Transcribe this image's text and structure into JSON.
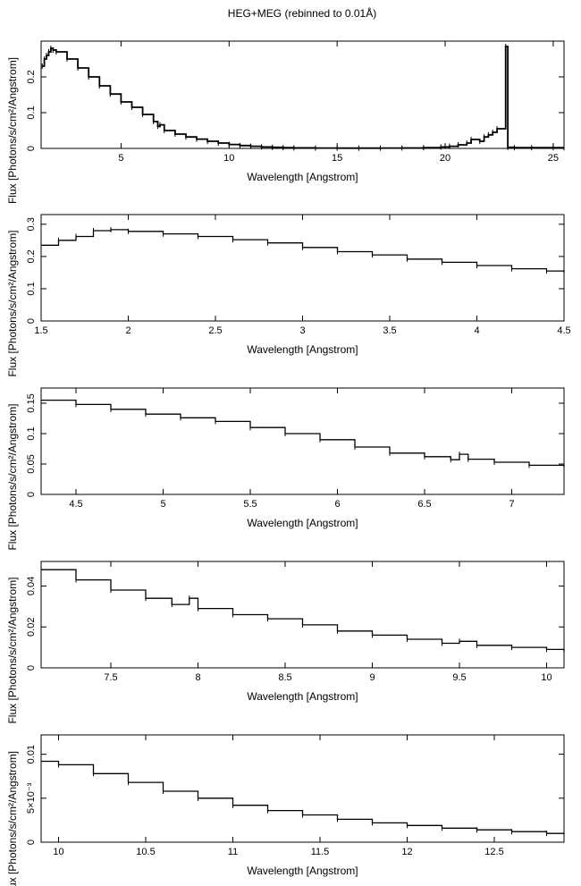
{
  "title": "HEG+MEG (rebinned to 0.01Å)",
  "chart_data": [
    {
      "type": "line",
      "xlabel": "Wavelength [Angstrom]",
      "ylabel": "Flux [Photons/s/cm²/Angstrom]",
      "xlim": [
        1.3,
        25.5
      ],
      "ylim": [
        0,
        0.3
      ],
      "xticks": [
        {
          "v": 5,
          "label": "5"
        },
        {
          "v": 10,
          "label": "10"
        },
        {
          "v": 15,
          "label": "15"
        },
        {
          "v": 20,
          "label": "20"
        },
        {
          "v": 25,
          "label": "25"
        }
      ],
      "yticks": [
        {
          "v": 0,
          "label": "0"
        },
        {
          "v": 0.1,
          "label": "0.1"
        },
        {
          "v": 0.2,
          "label": "0.2"
        }
      ],
      "x": [
        1.35,
        1.45,
        1.55,
        1.65,
        1.75,
        1.85,
        2.0,
        2.5,
        3.0,
        3.5,
        4.0,
        4.5,
        5.0,
        5.5,
        6.0,
        6.5,
        6.7,
        6.8,
        7.0,
        7.5,
        8.0,
        8.5,
        9.0,
        9.5,
        10.0,
        10.5,
        11.0,
        11.5,
        12.0,
        12.5,
        13.0,
        14.0,
        15.0,
        16.0,
        17.0,
        18.0,
        19.0,
        19.8,
        20.2,
        20.6,
        21.0,
        21.2,
        21.6,
        21.8,
        22.0,
        22.2,
        22.4,
        22.8,
        22.9,
        23.2,
        24.0,
        25.0,
        25.5
      ],
      "y": [
        0.23,
        0.25,
        0.26,
        0.27,
        0.28,
        0.275,
        0.27,
        0.25,
        0.225,
        0.2,
        0.175,
        0.152,
        0.13,
        0.115,
        0.095,
        0.075,
        0.062,
        0.066,
        0.05,
        0.04,
        0.032,
        0.026,
        0.02,
        0.015,
        0.011,
        0.008,
        0.006,
        0.004,
        0.003,
        0.002,
        0.0015,
        0.001,
        0.0008,
        0.0008,
        0.001,
        0.0012,
        0.002,
        0.004,
        0.006,
        0.01,
        0.015,
        0.025,
        0.02,
        0.032,
        0.038,
        0.045,
        0.055,
        0.285,
        0.003,
        0.002,
        0.002,
        0.002,
        0.002
      ]
    },
    {
      "type": "line",
      "xlabel": "Wavelength [Angstrom]",
      "ylabel": "Flux [Photons/s/cm²/Angstrom]",
      "xlim": [
        1.5,
        4.5
      ],
      "ylim": [
        0,
        0.33
      ],
      "xticks": [
        {
          "v": 1.5,
          "label": "1.5"
        },
        {
          "v": 2,
          "label": "2"
        },
        {
          "v": 2.5,
          "label": "2.5"
        },
        {
          "v": 3,
          "label": "3"
        },
        {
          "v": 3.5,
          "label": "3.5"
        },
        {
          "v": 4,
          "label": "4"
        },
        {
          "v": 4.5,
          "label": "4.5"
        }
      ],
      "yticks": [
        {
          "v": 0,
          "label": "0"
        },
        {
          "v": 0.1,
          "label": "0.1"
        },
        {
          "v": 0.2,
          "label": "0.2"
        },
        {
          "v": 0.3,
          "label": "0.3"
        }
      ],
      "x": [
        1.5,
        1.6,
        1.7,
        1.8,
        1.9,
        2.0,
        2.2,
        2.4,
        2.6,
        2.8,
        3.0,
        3.2,
        3.4,
        3.6,
        3.8,
        4.0,
        4.2,
        4.4,
        4.5
      ],
      "y": [
        0.235,
        0.25,
        0.262,
        0.28,
        0.283,
        0.278,
        0.27,
        0.262,
        0.252,
        0.242,
        0.228,
        0.215,
        0.205,
        0.192,
        0.182,
        0.172,
        0.162,
        0.155,
        0.15
      ]
    },
    {
      "type": "line",
      "xlabel": "Wavelength [Angstrom]",
      "ylabel": "Flux [Photons/s/cm²/Angstrom]",
      "xlim": [
        4.3,
        7.3
      ],
      "ylim": [
        0,
        0.175
      ],
      "xticks": [
        {
          "v": 4.5,
          "label": "4.5"
        },
        {
          "v": 5,
          "label": "5"
        },
        {
          "v": 5.5,
          "label": "5.5"
        },
        {
          "v": 6,
          "label": "6"
        },
        {
          "v": 6.5,
          "label": "6.5"
        },
        {
          "v": 7,
          "label": "7"
        }
      ],
      "yticks": [
        {
          "v": 0,
          "label": "0"
        },
        {
          "v": 0.05,
          "label": "0.05"
        },
        {
          "v": 0.1,
          "label": "0.1"
        },
        {
          "v": 0.15,
          "label": "0.15"
        }
      ],
      "x": [
        4.3,
        4.5,
        4.7,
        4.9,
        5.1,
        5.3,
        5.5,
        5.7,
        5.9,
        6.1,
        6.3,
        6.5,
        6.65,
        6.7,
        6.75,
        6.9,
        7.1,
        7.3
      ],
      "y": [
        0.155,
        0.148,
        0.14,
        0.132,
        0.126,
        0.12,
        0.11,
        0.1,
        0.09,
        0.078,
        0.068,
        0.062,
        0.057,
        0.066,
        0.058,
        0.053,
        0.048,
        0.045
      ]
    },
    {
      "type": "line",
      "xlabel": "Wavelength [Angstrom]",
      "ylabel": "Flux [Photons/s/cm²/Angstrom]",
      "xlim": [
        7.1,
        10.1
      ],
      "ylim": [
        0,
        0.052
      ],
      "xticks": [
        {
          "v": 7.5,
          "label": "7.5"
        },
        {
          "v": 8,
          "label": "8"
        },
        {
          "v": 8.5,
          "label": "8.5"
        },
        {
          "v": 9,
          "label": "9"
        },
        {
          "v": 9.5,
          "label": "9.5"
        },
        {
          "v": 10,
          "label": "10"
        }
      ],
      "yticks": [
        {
          "v": 0,
          "label": "0"
        },
        {
          "v": 0.02,
          "label": "0.02"
        },
        {
          "v": 0.04,
          "label": "0.04"
        }
      ],
      "x": [
        7.1,
        7.3,
        7.5,
        7.7,
        7.85,
        7.95,
        8.0,
        8.2,
        8.4,
        8.6,
        8.8,
        9.0,
        9.2,
        9.4,
        9.5,
        9.6,
        9.8,
        10.0,
        10.1
      ],
      "y": [
        0.048,
        0.043,
        0.038,
        0.034,
        0.031,
        0.034,
        0.029,
        0.026,
        0.024,
        0.021,
        0.018,
        0.016,
        0.014,
        0.012,
        0.013,
        0.011,
        0.01,
        0.009,
        0.008
      ]
    },
    {
      "type": "line",
      "xlabel": "Wavelength [Angstrom]",
      "ylabel": "Flux [Photons/s/cm²/Angstrom]",
      "xlim": [
        9.9,
        12.9
      ],
      "ylim": [
        0,
        0.0122
      ],
      "xticks": [
        {
          "v": 10,
          "label": "10"
        },
        {
          "v": 10.5,
          "label": "10.5"
        },
        {
          "v": 11,
          "label": "11"
        },
        {
          "v": 11.5,
          "label": "11.5"
        },
        {
          "v": 12,
          "label": "12"
        },
        {
          "v": 12.5,
          "label": "12.5"
        }
      ],
      "yticks": [
        {
          "v": 0,
          "label": "0"
        },
        {
          "v": 0.005,
          "label": "5×10⁻³"
        },
        {
          "v": 0.01,
          "label": "0.01"
        }
      ],
      "x": [
        9.9,
        10.0,
        10.2,
        10.4,
        10.6,
        10.8,
        11.0,
        11.2,
        11.4,
        11.6,
        11.8,
        12.0,
        12.2,
        12.4,
        12.6,
        12.8,
        12.9
      ],
      "y": [
        0.0092,
        0.0088,
        0.0078,
        0.0068,
        0.0058,
        0.005,
        0.0042,
        0.0036,
        0.0031,
        0.0026,
        0.0022,
        0.0019,
        0.0016,
        0.0014,
        0.0012,
        0.001,
        0.0009
      ]
    }
  ]
}
